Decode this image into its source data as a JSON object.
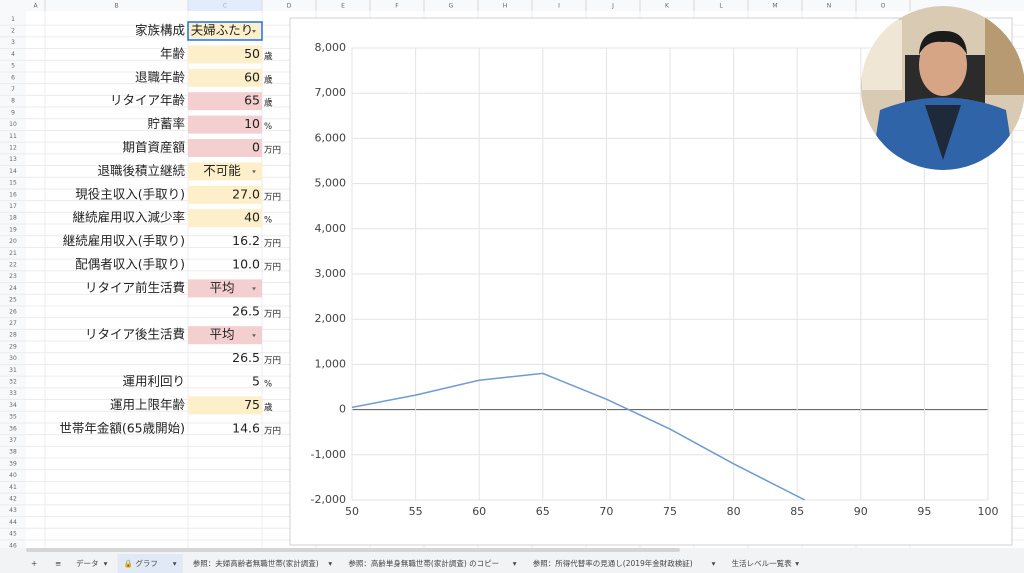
{
  "column_headers": [
    "A",
    "B",
    "C",
    "D",
    "E",
    "F",
    "G",
    "H",
    "I",
    "J",
    "K",
    "L",
    "M",
    "N",
    "O"
  ],
  "row_numbers": [
    1,
    2,
    3,
    4,
    5,
    6,
    7,
    8,
    9,
    10,
    11,
    12,
    13,
    14,
    15,
    16,
    17,
    18,
    19,
    20,
    21,
    22,
    23,
    24,
    25,
    26,
    27,
    28,
    29,
    30,
    31,
    32,
    33,
    34,
    35,
    36,
    37,
    38,
    39,
    40,
    41,
    42,
    43,
    44,
    45,
    46
  ],
  "form": [
    {
      "label": "家族構成",
      "value": "夫婦ふたり",
      "fill": "#fdefc9",
      "dropdown": true,
      "selected": true
    },
    {
      "label": "年齢",
      "value": "50",
      "unit": "歳",
      "fill": "#fdefc9"
    },
    {
      "label": "退職年齢",
      "value": "60",
      "unit": "歳",
      "fill": "#fdefc9"
    },
    {
      "label": "リタイア年齢",
      "value": "65",
      "unit": "歳",
      "fill": "#f4cfcf"
    },
    {
      "label": "貯蓄率",
      "value": "10",
      "unit": "%",
      "fill": "#f4cfcf"
    },
    {
      "label": "期首資産額",
      "value": "0",
      "unit": "万円",
      "fill": "#f4cfcf"
    },
    {
      "label": "退職後積立継続",
      "value": "不可能",
      "fill": "#fdefc9",
      "dropdown": true
    },
    {
      "label": "現役主収入(手取り)",
      "value": "27.0",
      "unit": "万円",
      "fill": "#fdefc9"
    },
    {
      "label": "継続雇用収入減少率",
      "value": "40",
      "unit": "%",
      "fill": "#fdefc9"
    },
    {
      "label": "継続雇用収入(手取り)",
      "value": "16.2",
      "unit": "万円"
    },
    {
      "label": "配偶者収入(手取り)",
      "value": "10.0",
      "unit": "万円"
    },
    {
      "label": "リタイア前生活費",
      "value": "平均",
      "fill": "#f4cfcf",
      "dropdown": true
    },
    {
      "value": "26.5",
      "unit": "万円"
    },
    {
      "label": "リタイア後生活費",
      "value": "平均",
      "fill": "#f4cfcf",
      "dropdown": true
    },
    {
      "value": "26.5",
      "unit": "万円"
    },
    {
      "label": "運用利回り",
      "value": "5",
      "unit": "%"
    },
    {
      "label": "運用上限年齢",
      "value": "75",
      "unit": "歳",
      "fill": "#fdefc9"
    },
    {
      "label": "世帯年金額(65歳開始)",
      "value": "14.6",
      "unit": "万円"
    }
  ],
  "chart_data": {
    "type": "line",
    "x": [
      50,
      55,
      60,
      65,
      70,
      75,
      80,
      85.6
    ],
    "series": [
      {
        "color": "#6f9bd1",
        "values": [
          50,
          320,
          650,
          800,
          230,
          -430,
          -1200,
          -2000
        ]
      }
    ],
    "xlim": [
      50,
      100
    ],
    "xticks": [
      50,
      55,
      60,
      65,
      70,
      75,
      80,
      85,
      90,
      95,
      100
    ],
    "ylim": [
      -2000,
      8000
    ],
    "yticks": [
      {
        "value": -2000,
        "label": "-2,000"
      },
      {
        "value": -1000,
        "label": "-1,000"
      },
      0,
      {
        "value": 1000,
        "label": "1,000"
      },
      {
        "value": 2000,
        "label": "2,000"
      },
      {
        "value": 3000,
        "label": "3,000"
      },
      {
        "value": 4000,
        "label": "4,000"
      },
      {
        "value": 5000,
        "label": "5,000"
      },
      {
        "value": 6000,
        "label": "6,000"
      },
      {
        "value": 7000,
        "label": "7,000"
      },
      {
        "value": 8000,
        "label": "8,000"
      }
    ],
    "grid": true
  },
  "tabs": [
    {
      "label": "+"
    },
    {
      "label": "≡"
    },
    {
      "label": "データ",
      "menu": "▾"
    },
    {
      "label": "🔒 グラフ",
      "menu": "▾",
      "active": true
    },
    {
      "label": "参照：夫婦高齢者無職世帯(家計調査)",
      "menu": "▾"
    },
    {
      "label": "参照：高齢単身無職世帯(家計調査) のコピー",
      "menu": "▾"
    },
    {
      "label": "参照：所得代替率の見通し(2019年金財政検証)",
      "menu": "▾"
    },
    {
      "label": "生活レベル一覧表",
      "menu": "▾"
    }
  ]
}
